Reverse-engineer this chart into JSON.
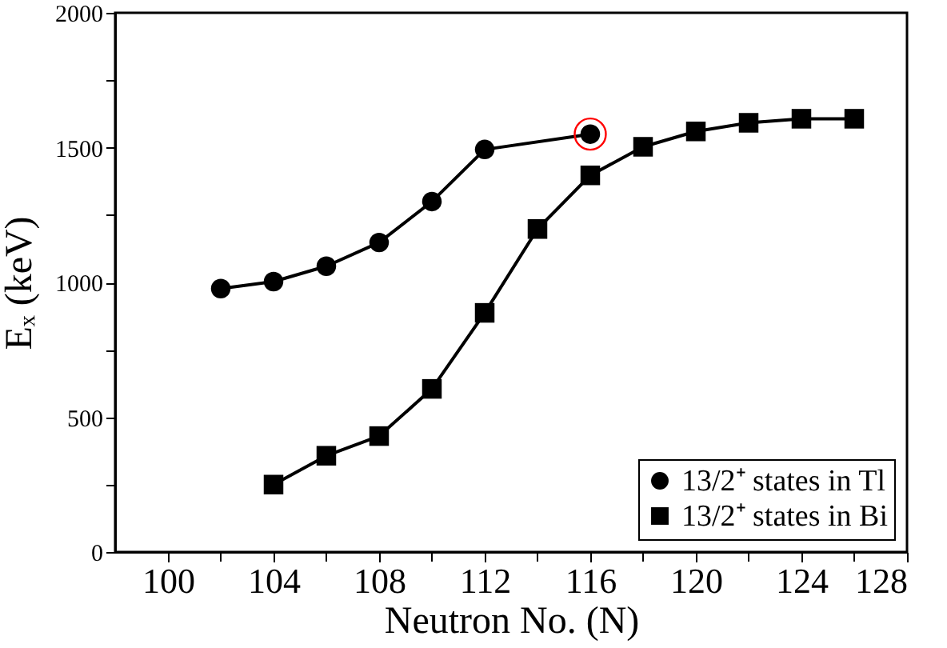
{
  "chart_data": {
    "type": "line",
    "xlabel": "Neutron No. (N)",
    "ylabel": "Eₓ (keV)",
    "xlim": [
      98,
      128
    ],
    "ylim": [
      0,
      2000
    ],
    "xticks": [
      100,
      {
        "value": 102,
        "label": null
      },
      104,
      {
        "value": 106,
        "label": null
      },
      108,
      {
        "value": 110,
        "label": null
      },
      112,
      {
        "value": 114,
        "label": null
      },
      116,
      {
        "value": 118,
        "label": null
      },
      120,
      {
        "value": 122,
        "label": null
      },
      124,
      {
        "value": 126,
        "label": null
      },
      128
    ],
    "yticks": [
      0,
      {
        "value": 250,
        "label": null
      },
      500,
      {
        "value": 750,
        "label": null
      },
      1000,
      {
        "value": 1250,
        "label": null
      },
      1500,
      {
        "value": 1750,
        "label": null
      },
      2000
    ],
    "grid": false,
    "legend": "bottom right",
    "series": [
      {
        "name": "13/2⁺ states in Tl",
        "color": "#000000",
        "type": "line",
        "marker": "circle",
        "x": [
          102,
          104,
          106,
          108,
          110,
          112,
          116
        ],
        "values": [
          977,
          1003,
          1060,
          1148,
          1300,
          1493,
          1550
        ]
      },
      {
        "name": "13/2⁺ states in Bi",
        "color": "#000000",
        "type": "line",
        "marker": "square",
        "x": [
          104,
          106,
          108,
          110,
          112,
          114,
          116,
          118,
          120,
          122,
          124,
          126
        ],
        "values": [
          250,
          357,
          430,
          605,
          887,
          1198,
          1397,
          1503,
          1560,
          1592,
          1607,
          1607
        ]
      },
      {
        "color": "#ff0000",
        "type": "scatter",
        "marker": "circle",
        "x": [
          116
        ],
        "values": [
          1550
        ]
      }
    ]
  }
}
